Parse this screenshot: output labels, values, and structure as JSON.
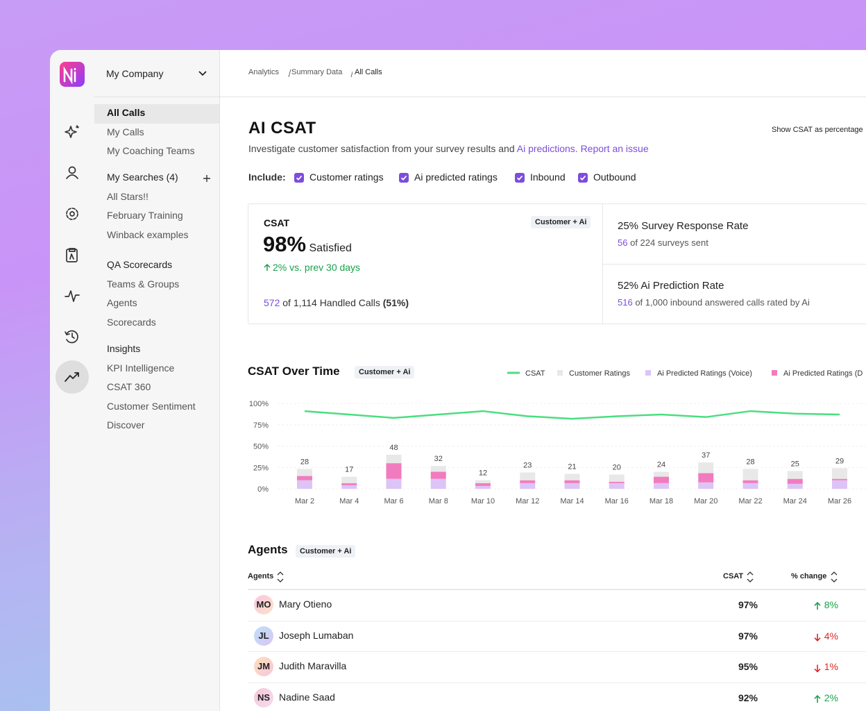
{
  "sidebar": {
    "company": "My Company",
    "groups": [
      {
        "items": [
          "All Calls",
          "My Calls",
          "My Coaching Teams"
        ]
      },
      {
        "items": [
          "My Searches (4)",
          "All Stars!!",
          "February Training",
          "Winback examples"
        ]
      },
      {
        "items": [
          "QA Scorecards",
          "Teams & Groups",
          "Agents",
          "Scorecards"
        ]
      },
      {
        "items": [
          "Insights",
          "KPI Intelligence",
          "CSAT 360",
          "Customer Sentiment",
          "Discover"
        ]
      }
    ]
  },
  "breadcrumb": [
    "Analytics",
    "Summary Data",
    "All Calls"
  ],
  "page": {
    "title": "AI CSAT",
    "toggle": "Show CSAT as percentage",
    "subtitle": "Investigate customer satisfaction from your survey results and",
    "link_predictions": "Ai predictions.",
    "link_issue": "Report an issue"
  },
  "filters": {
    "label": "Include:",
    "options": [
      "Customer ratings",
      "Ai predicted ratings",
      "Inbound",
      "Outbound"
    ]
  },
  "summary": {
    "csat": {
      "label": "CSAT",
      "badge": "Customer + Ai",
      "value": "98%",
      "caption": "Satisfied",
      "change": "2% vs. prev 30 days",
      "count": "572",
      "count_text": "of 1,114 Handled Calls",
      "count_pct": "(51%)"
    },
    "response": {
      "title": "25% Survey Response Rate",
      "count": "56",
      "text": "of 224 surveys sent"
    },
    "prediction": {
      "title": "52% Ai Prediction Rate",
      "count": "516",
      "text": "of 1,000 inbound answered calls rated by Ai"
    }
  },
  "chart_data": {
    "type": "combo",
    "title": "CSAT Over Time",
    "badge": "Customer + Ai",
    "categories": [
      "Mar 2",
      "Mar 4",
      "Mar 6",
      "Mar 8",
      "Mar 10",
      "Mar 12",
      "Mar 14",
      "Mar 16",
      "Mar 18",
      "Mar 20",
      "Mar 22",
      "Mar 24",
      "Mar 26"
    ],
    "series": [
      {
        "name": "CSAT",
        "type": "line",
        "color": "#4ade80",
        "values": [
          91,
          87,
          83,
          87,
          91,
          85,
          82,
          85,
          87,
          84,
          91,
          88,
          87
        ]
      },
      {
        "name": "Customer Ratings",
        "type": "bar",
        "axis": "y2",
        "color": "#e8e8e8",
        "values": [
          10,
          9,
          12,
          8,
          4,
          11,
          9,
          10,
          7,
          15,
          16,
          11,
          15
        ]
      },
      {
        "name": "Ai Predicted Ratings (Voice)",
        "type": "bar",
        "axis": "y2",
        "color": "#dcc4f7",
        "values": [
          12,
          5,
          14,
          14,
          4,
          8,
          8,
          8,
          8,
          9,
          8,
          7,
          12
        ]
      },
      {
        "name": "Ai Predicted Ratings (D",
        "type": "bar",
        "axis": "y2",
        "color": "#f27bbf",
        "values": [
          6,
          3,
          22,
          10,
          4,
          4,
          4,
          2,
          9,
          13,
          4,
          7,
          2
        ]
      }
    ],
    "totals": [
      28,
      17,
      48,
      32,
      12,
      23,
      21,
      20,
      24,
      37,
      28,
      25,
      29
    ],
    "ylim": [
      0,
      100
    ],
    "yticks": [
      {
        "value": 0,
        "label": "0%"
      },
      {
        "value": 25,
        "label": "25%"
      },
      {
        "value": 50,
        "label": "50%"
      },
      {
        "value": 75,
        "label": "75%"
      },
      {
        "value": 100,
        "label": "100%"
      }
    ],
    "y2lim": [
      0,
      120
    ],
    "grid": true
  },
  "agents": {
    "title": "Agents",
    "badge": "Customer + Ai",
    "columns": [
      "Agents",
      "CSAT",
      "% change"
    ],
    "rows": [
      {
        "initials": "MO",
        "name": "Mary Otieno",
        "csat": "97%",
        "change": "8%",
        "trend": "up"
      },
      {
        "initials": "JL",
        "name": "Joseph Lumaban",
        "csat": "97%",
        "change": "4%",
        "trend": "down"
      },
      {
        "initials": "JM",
        "name": "Judith Maravilla",
        "csat": "95%",
        "change": "1%",
        "trend": "down"
      },
      {
        "initials": "NS",
        "name": "Nadine Saad",
        "csat": "92%",
        "change": "2%",
        "trend": "up"
      }
    ]
  }
}
